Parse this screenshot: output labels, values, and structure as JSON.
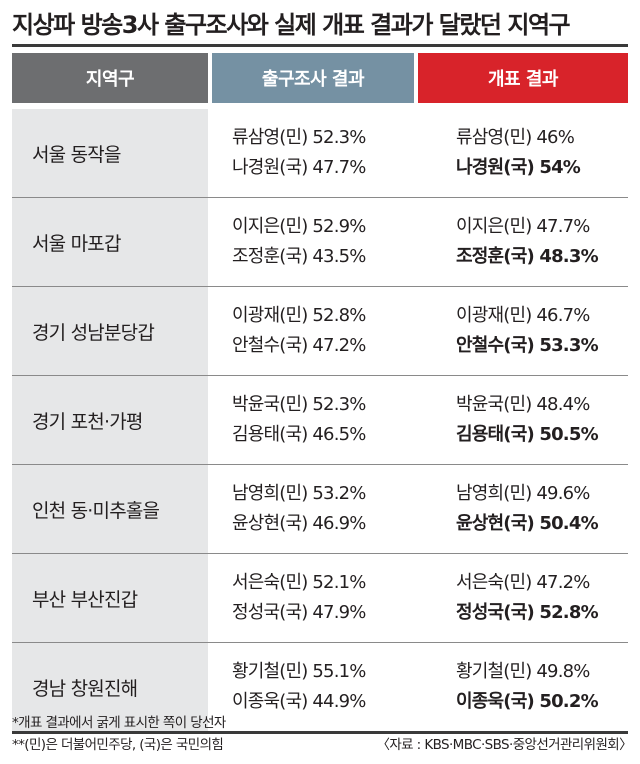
{
  "title": "지상파 방송3사 출구조사와 실제 개표 결과가 달랐던 지역구",
  "headers": {
    "district": "지역구",
    "exit_poll": "출구조사 결과",
    "vote_count": "개표 결과"
  },
  "rows": [
    {
      "district": "서울 동작을",
      "exit": [
        "류삼영(민) 52.3%",
        "나경원(국) 47.7%"
      ],
      "count": [
        "류삼영(민) 46%",
        "나경원(국) 54%"
      ],
      "winner_index": 1
    },
    {
      "district": "서울 마포갑",
      "exit": [
        "이지은(민) 52.9%",
        "조정훈(국) 43.5%"
      ],
      "count": [
        "이지은(민) 47.7%",
        "조정훈(국) 48.3%"
      ],
      "winner_index": 1
    },
    {
      "district": "경기 성남분당갑",
      "exit": [
        "이광재(민) 52.8%",
        "안철수(국) 47.2%"
      ],
      "count": [
        "이광재(민) 46.7%",
        "안철수(국) 53.3%"
      ],
      "winner_index": 1
    },
    {
      "district": "경기 포천·가평",
      "exit": [
        "박윤국(민) 52.3%",
        "김용태(국) 46.5%"
      ],
      "count": [
        "박윤국(민) 48.4%",
        "김용태(국) 50.5%"
      ],
      "winner_index": 1
    },
    {
      "district": "인천 동·미추홀을",
      "exit": [
        "남영희(민) 53.2%",
        "윤상현(국) 46.9%"
      ],
      "count": [
        "남영희(민) 49.6%",
        "윤상현(국) 50.4%"
      ],
      "winner_index": 1
    },
    {
      "district": "부산 부산진갑",
      "exit": [
        "서은숙(민) 52.1%",
        "정성국(국) 47.9%"
      ],
      "count": [
        "서은숙(민) 47.2%",
        "정성국(국) 52.8%"
      ],
      "winner_index": 1
    },
    {
      "district": "경남 창원진해",
      "exit": [
        "황기철(민) 55.1%",
        "이종욱(국) 44.9%"
      ],
      "count": [
        "황기철(민) 49.8%",
        "이종욱(국) 50.2%"
      ],
      "winner_index": 1
    }
  ],
  "notes": {
    "note1": "*개표 결과에서 굵게 표시한 쪽이 당선자",
    "note2": "**(민)은 더불어민주당, (국)은 국민의힘",
    "source": "〈자료 : KBS·MBC·SBS·중앙선거관리위원회〉"
  },
  "colors": {
    "district_header": "#6d6e70",
    "exit_header": "#7591a3",
    "count_header": "#d8232a",
    "district_bg": "#e6e7e8"
  }
}
